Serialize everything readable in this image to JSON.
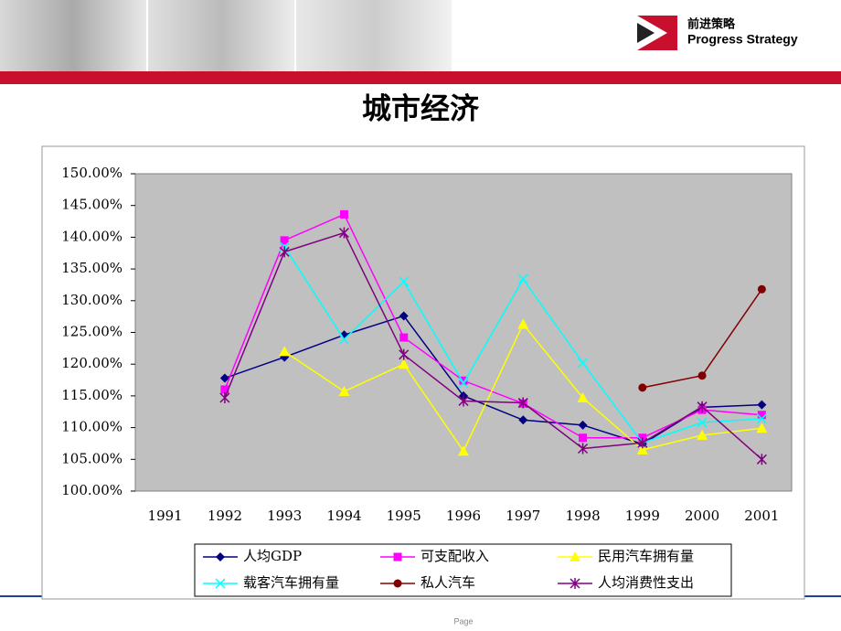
{
  "logo": {
    "cn": "前进策略",
    "en": "Progress Strategy"
  },
  "footer": "Page",
  "chart_data": {
    "type": "line",
    "title": "城市经济",
    "categories": [
      "1991",
      "1992",
      "1993",
      "1994",
      "1995",
      "1996",
      "1997",
      "1998",
      "1999",
      "2000",
      "2001"
    ],
    "ylim": [
      100,
      150
    ],
    "yticks": [
      {
        "value": 100,
        "label": "100.00%"
      },
      {
        "value": 105,
        "label": "105.00%"
      },
      {
        "value": 110,
        "label": "110.00%"
      },
      {
        "value": 115,
        "label": "115.00%"
      },
      {
        "value": 120,
        "label": "120.00%"
      },
      {
        "value": 125,
        "label": "125.00%"
      },
      {
        "value": 130,
        "label": "130.00%"
      },
      {
        "value": 135,
        "label": "135.00%"
      },
      {
        "value": 140,
        "label": "140.00%"
      },
      {
        "value": 145,
        "label": "145.00%"
      },
      {
        "value": 150,
        "label": "150.00%"
      }
    ],
    "grid": false,
    "series": [
      {
        "name": "人均GDP",
        "color": "#000080",
        "marker": "diamond",
        "values": [
          null,
          117.8,
          121.1,
          124.6,
          127.6,
          115.0,
          111.2,
          110.4,
          107.4,
          113.2,
          113.6
        ]
      },
      {
        "name": "可支配收入",
        "color": "#ff00ff",
        "marker": "square",
        "values": [
          null,
          116.0,
          139.5,
          143.6,
          124.2,
          117.4,
          113.8,
          108.4,
          108.4,
          112.8,
          112.0
        ]
      },
      {
        "name": "民用汽车拥有量",
        "color": "#ffff00",
        "marker": "triangle",
        "values": [
          null,
          null,
          122.0,
          115.7,
          120.0,
          106.3,
          126.3,
          114.7,
          106.5,
          108.8,
          109.9
        ]
      },
      {
        "name": "载客汽车拥有量",
        "color": "#00ffff",
        "marker": "x",
        "values": [
          null,
          null,
          138.5,
          123.9,
          133.0,
          117.0,
          133.4,
          120.2,
          107.6,
          110.8,
          111.4
        ]
      },
      {
        "name": "私人汽车",
        "color": "#800000",
        "marker": "circle",
        "values": [
          null,
          null,
          null,
          null,
          null,
          null,
          null,
          null,
          116.3,
          118.2,
          131.8
        ]
      },
      {
        "name": "人均消费性支出",
        "color": "#800080",
        "marker": "star",
        "values": [
          null,
          114.7,
          137.7,
          140.7,
          121.5,
          114.2,
          113.9,
          106.7,
          107.6,
          113.3,
          105.0
        ]
      }
    ]
  }
}
